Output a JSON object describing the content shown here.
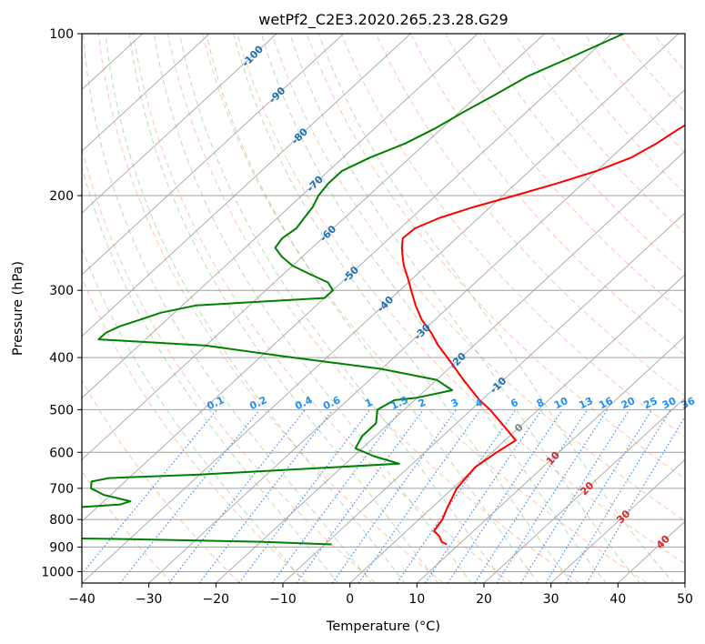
{
  "chart_data": {
    "type": "line",
    "title": "wetPf2_C2E3.2020.265.23.28.G29",
    "xlabel": "Temperature (°C)",
    "ylabel": "Pressure (hPa)",
    "xlim": [
      -40,
      50
    ],
    "ylim": [
      1050,
      100
    ],
    "y_scale": "log",
    "x_ticks": [
      "−40",
      "−30",
      "−20",
      "−10",
      "0",
      "10",
      "20",
      "30",
      "40",
      "50"
    ],
    "y_ticks": [
      "1000",
      "900",
      "800",
      "700",
      "600",
      "500",
      "400",
      "300",
      "200",
      "100"
    ],
    "grid": true,
    "colors": {
      "temperature": "#ff0000",
      "dewpoint": "#008000",
      "isotherm": "#a0a0a0",
      "dry_adiabat": "#ff7f50",
      "moist_adiabat": "#4fa84f",
      "mixing_ratio": "#1f77ff",
      "isotherm_label": "#1f6fb0",
      "mixing_ratio_label": "#2090f0",
      "freezing_label": "#808080",
      "warm_label": "#d62728"
    },
    "isotherm_labels": [
      "-100",
      "-90",
      "-80",
      "-70",
      "-60",
      "-50",
      "-40",
      "-30",
      "-20",
      "-10",
      "0",
      "10",
      "20",
      "30",
      "40"
    ],
    "mixing_ratio_labels": [
      "0.1",
      "0.2",
      "0.4",
      "0.6",
      "1",
      "1.5",
      "2",
      "3",
      "4",
      "6",
      "8",
      "10",
      "13",
      "16",
      "20",
      "25",
      "30",
      "36"
    ],
    "series": [
      {
        "key": "temperature",
        "points": [
          [
            -16.4,
            100
          ],
          [
            -17.4,
            110
          ],
          [
            -19.0,
            120
          ],
          [
            -21.0,
            130
          ],
          [
            -23.0,
            140
          ],
          [
            -24.5,
            150
          ],
          [
            -25.5,
            160
          ],
          [
            -27.0,
            170
          ],
          [
            -30.0,
            180
          ],
          [
            -34.0,
            190
          ],
          [
            -38.2,
            200
          ],
          [
            -42.5,
            210
          ],
          [
            -45.8,
            220
          ],
          [
            -47.8,
            230
          ],
          [
            -48.0,
            240
          ],
          [
            -46.6,
            250
          ],
          [
            -45.0,
            260
          ],
          [
            -43.4,
            270
          ],
          [
            -41.6,
            280
          ],
          [
            -39.9,
            290
          ],
          [
            -38.3,
            300
          ],
          [
            -35.2,
            320
          ],
          [
            -32.0,
            340
          ],
          [
            -28.4,
            360
          ],
          [
            -25.3,
            380
          ],
          [
            -22.0,
            400
          ],
          [
            -16.0,
            440
          ],
          [
            -10.3,
            480
          ],
          [
            -7.2,
            500
          ],
          [
            -2.0,
            540
          ],
          [
            1.6,
            570
          ],
          [
            0.7,
            600
          ],
          [
            -0.1,
            640
          ],
          [
            0.6,
            700
          ],
          [
            2.3,
            760
          ],
          [
            3.5,
            800
          ],
          [
            3.8,
            820
          ],
          [
            4.1,
            840
          ],
          [
            5.8,
            860
          ],
          [
            7.0,
            880
          ],
          [
            8.2,
            890
          ]
        ]
      },
      {
        "key": "dewpoint",
        "points": [
          [
            -48.2,
            100
          ],
          [
            -52.0,
            110
          ],
          [
            -55.6,
            120
          ],
          [
            -57.5,
            130
          ],
          [
            -59.4,
            140
          ],
          [
            -61.0,
            150
          ],
          [
            -63.0,
            160
          ],
          [
            -66.0,
            170
          ],
          [
            -68.0,
            180
          ],
          [
            -68.0,
            190
          ],
          [
            -67.5,
            200
          ],
          [
            -66.5,
            210
          ],
          [
            -66.0,
            220
          ],
          [
            -65.5,
            230
          ],
          [
            -66.0,
            240
          ],
          [
            -65.5,
            250
          ],
          [
            -63.0,
            260
          ],
          [
            -60.0,
            270
          ],
          [
            -56.0,
            280
          ],
          [
            -52.0,
            290
          ],
          [
            -50.0,
            300
          ],
          [
            -50.0,
            310
          ],
          [
            -68.0,
            320
          ],
          [
            -72.0,
            330
          ],
          [
            -74.0,
            340
          ],
          [
            -76.0,
            350
          ],
          [
            -77.0,
            360
          ],
          [
            -77.0,
            370
          ],
          [
            -60.0,
            380
          ],
          [
            -45.0,
            400
          ],
          [
            -30.0,
            420
          ],
          [
            -20.0,
            440
          ],
          [
            -16.0,
            460
          ],
          [
            -20.0,
            475
          ],
          [
            -23.0,
            480
          ],
          [
            -24.0,
            500
          ],
          [
            -22.0,
            530
          ],
          [
            -22.0,
            560
          ],
          [
            -21.0,
            590
          ],
          [
            -17.0,
            610
          ],
          [
            -12.0,
            630
          ],
          [
            -40.0,
            660
          ],
          [
            -53.0,
            670
          ],
          [
            -55.0,
            680
          ],
          [
            -54.0,
            700
          ],
          [
            -51.0,
            720
          ],
          [
            -46.0,
            740
          ],
          [
            -47.0,
            750
          ],
          [
            -60.0,
            770
          ],
          [
            -80.0,
            780
          ],
          [
            -82.0,
            800
          ],
          [
            -78.0,
            830
          ],
          [
            -72.0,
            860
          ],
          [
            -40.0,
            870
          ],
          [
            -20.0,
            880
          ],
          [
            -9.0,
            890
          ]
        ]
      }
    ]
  }
}
